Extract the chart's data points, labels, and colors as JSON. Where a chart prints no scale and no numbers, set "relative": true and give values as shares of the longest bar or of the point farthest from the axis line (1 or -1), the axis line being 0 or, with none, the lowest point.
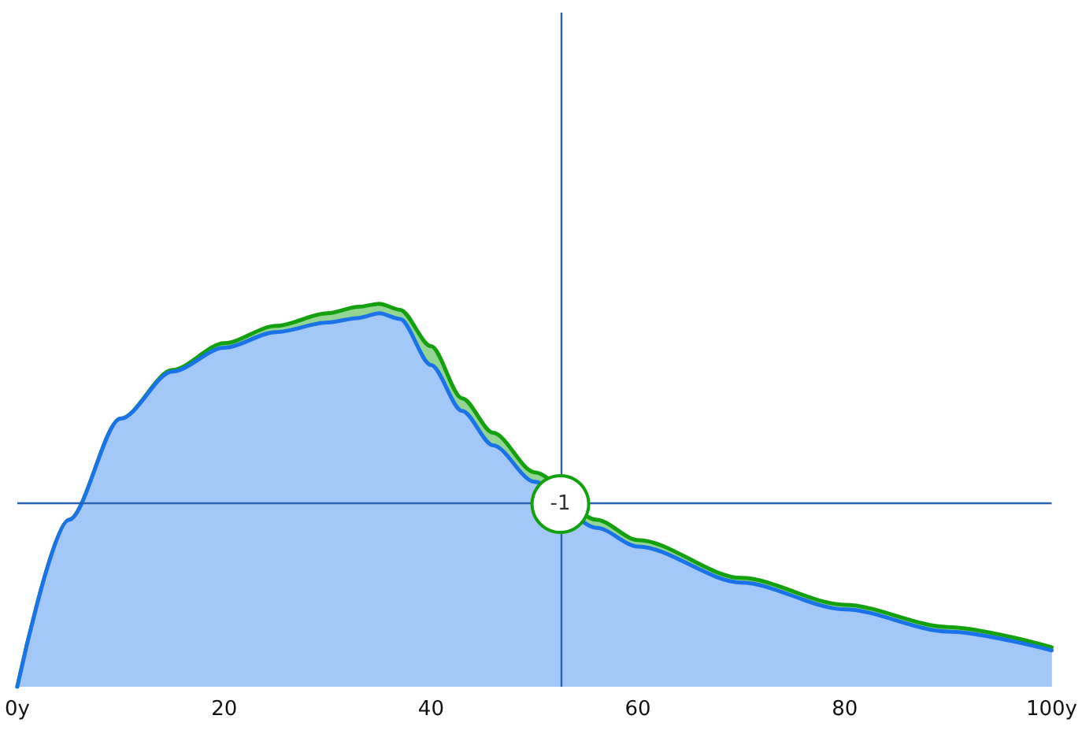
{
  "chart_data": {
    "type": "area",
    "relative": true,
    "grid": false,
    "marker": "none",
    "line_style": "solid",
    "x": [
      0,
      5,
      10,
      15,
      20,
      25,
      30,
      33,
      35,
      37,
      40,
      43,
      46,
      50,
      56,
      60,
      70,
      80,
      90,
      100
    ],
    "xlim": [
      0,
      100
    ],
    "xticks": [
      {
        "value": 0,
        "label": "0y"
      },
      20,
      40,
      60,
      80,
      {
        "value": 100,
        "label": "100y"
      }
    ],
    "series": [
      {
        "color": "#13a10e",
        "values": [
          0,
          0.436,
          0.7,
          0.827,
          0.897,
          0.942,
          0.975,
          0.992,
          1,
          0.984,
          0.889,
          0.753,
          0.663,
          0.56,
          0.436,
          0.383,
          0.284,
          0.214,
          0.156,
          0.103
        ]
      },
      {
        "color": "#1a73e8",
        "values": [
          0,
          0.436,
          0.7,
          0.823,
          0.885,
          0.926,
          0.951,
          0.963,
          0.975,
          0.96,
          0.84,
          0.72,
          0.63,
          0.535,
          0.415,
          0.366,
          0.272,
          0.202,
          0.144,
          0.095
        ]
      }
    ],
    "ref_lines": [
      {
        "axis": "x",
        "value": 52.5,
        "color": "#2a64b0"
      },
      {
        "axis": "y",
        "value": 0.477,
        "color": "#2a64b0"
      }
    ],
    "annotations": [
      {
        "text": "-1",
        "x": 52.5,
        "y": 0.477
      }
    ]
  }
}
